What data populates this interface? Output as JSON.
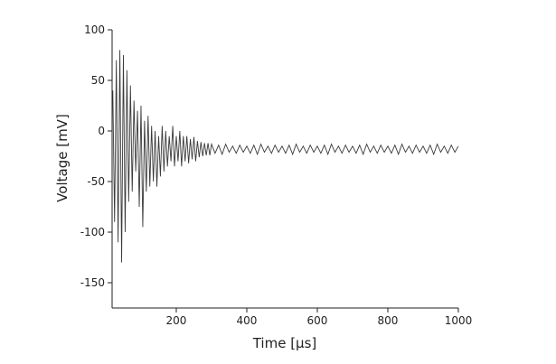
{
  "chart_data": {
    "type": "line",
    "xlabel": "Time [µs]",
    "ylabel": "Voltage [mV]",
    "xlim": [
      18,
      1000
    ],
    "ylim": [
      -175,
      100
    ],
    "xticks": [
      200,
      400,
      600,
      800,
      1000
    ],
    "yticks": [
      -150,
      -100,
      -50,
      0,
      50,
      100
    ],
    "series": [
      {
        "color": "#3a3a3a",
        "x": [
          20,
          25,
          30,
          35,
          40,
          45,
          50,
          55,
          60,
          65,
          70,
          75,
          80,
          85,
          90,
          95,
          100,
          105,
          110,
          115,
          120,
          125,
          130,
          135,
          140,
          145,
          150,
          155,
          160,
          165,
          170,
          175,
          180,
          185,
          190,
          195,
          200,
          205,
          210,
          215,
          220,
          225,
          230,
          235,
          240,
          245,
          250,
          255,
          260,
          265,
          270,
          275,
          280,
          285,
          290,
          295,
          300,
          310,
          320,
          330,
          340,
          350,
          360,
          370,
          380,
          390,
          400,
          410,
          420,
          430,
          440,
          450,
          460,
          470,
          480,
          490,
          500,
          510,
          520,
          530,
          540,
          550,
          560,
          570,
          580,
          590,
          600,
          610,
          620,
          630,
          640,
          650,
          660,
          670,
          680,
          690,
          700,
          710,
          720,
          730,
          740,
          750,
          760,
          770,
          780,
          790,
          800,
          810,
          820,
          830,
          840,
          850,
          860,
          870,
          880,
          890,
          900,
          910,
          920,
          930,
          940,
          950,
          960,
          970,
          980,
          990,
          1000
        ],
        "values": [
          40,
          -90,
          70,
          -110,
          80,
          -130,
          75,
          -100,
          60,
          -70,
          45,
          -60,
          30,
          -40,
          20,
          -75,
          25,
          -95,
          10,
          -60,
          15,
          -55,
          5,
          -50,
          0,
          -55,
          -5,
          -45,
          5,
          -40,
          0,
          -35,
          -5,
          -30,
          5,
          -35,
          -5,
          -30,
          0,
          -35,
          -5,
          -30,
          -5,
          -32,
          -8,
          -28,
          -6,
          -30,
          -10,
          -26,
          -11,
          -25,
          -12,
          -24,
          -12,
          -24,
          -13,
          -22,
          -14,
          -23,
          -13,
          -21,
          -15,
          -22,
          -14,
          -21,
          -15,
          -22,
          -14,
          -23,
          -13,
          -21,
          -15,
          -22,
          -14,
          -21,
          -15,
          -22,
          -14,
          -23,
          -13,
          -21,
          -15,
          -22,
          -14,
          -21,
          -15,
          -22,
          -14,
          -23,
          -13,
          -21,
          -15,
          -22,
          -14,
          -21,
          -15,
          -22,
          -14,
          -23,
          -13,
          -21,
          -15,
          -22,
          -14,
          -21,
          -15,
          -22,
          -14,
          -23,
          -13,
          -21,
          -15,
          -22,
          -14,
          -21,
          -15,
          -22,
          -14,
          -23,
          -13,
          -21,
          -15,
          -22,
          -14,
          -21,
          -15
        ]
      }
    ]
  }
}
